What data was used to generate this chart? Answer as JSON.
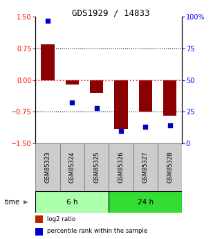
{
  "title": "GDS1929 / 14833",
  "samples": [
    "GSM85323",
    "GSM85324",
    "GSM85325",
    "GSM85326",
    "GSM85327",
    "GSM85328"
  ],
  "log2_ratio": [
    0.85,
    -0.1,
    -0.3,
    -1.15,
    -0.75,
    -0.85
  ],
  "percentile_rank": [
    97,
    32,
    28,
    10,
    13,
    14
  ],
  "bar_color": "#8B0000",
  "dot_color": "#0000CC",
  "ylim_left": [
    -1.5,
    1.5
  ],
  "ylim_right": [
    0,
    100
  ],
  "yticks_left": [
    -1.5,
    -0.75,
    0,
    0.75,
    1.5
  ],
  "yticks_right": [
    0,
    25,
    50,
    75,
    100
  ],
  "ytick_labels_right": [
    "0",
    "25",
    "50",
    "75",
    "100%"
  ],
  "time_groups": [
    {
      "label": "6 h",
      "start": 0,
      "end": 3,
      "color": "#AAFFAA"
    },
    {
      "label": "24 h",
      "start": 3,
      "end": 6,
      "color": "#33DD33"
    }
  ],
  "legend": [
    {
      "label": "log2 ratio",
      "color": "#BB2200"
    },
    {
      "label": "percentile rank within the sample",
      "color": "#0000CC"
    }
  ],
  "bar_width": 0.55,
  "sample_box_color": "#CCCCCC",
  "sample_box_edge": "#888888",
  "time_label": "time"
}
